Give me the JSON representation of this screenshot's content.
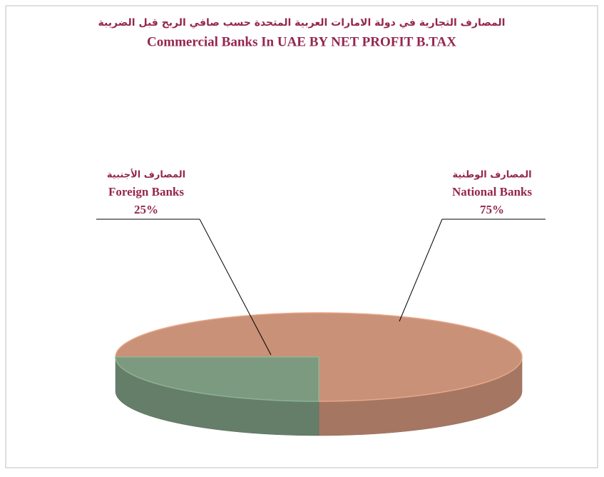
{
  "chart_data": {
    "type": "pie",
    "title_ar": "المصارف التجارية في دولة الامارات العربية المتحدة حسب صافي الربح قبل الضريبة",
    "title": "Commercial Banks In UAE BY NET PROFIT B.TAX",
    "categories_ar": [
      "المصارف الوطنية",
      "المصارف الأجنبية"
    ],
    "categories": [
      "National Banks",
      "Foreign Banks"
    ],
    "values": [
      75,
      25
    ],
    "value_labels": [
      "75%",
      "25%"
    ],
    "colors": [
      "#c99177",
      "#7b9a80"
    ]
  }
}
